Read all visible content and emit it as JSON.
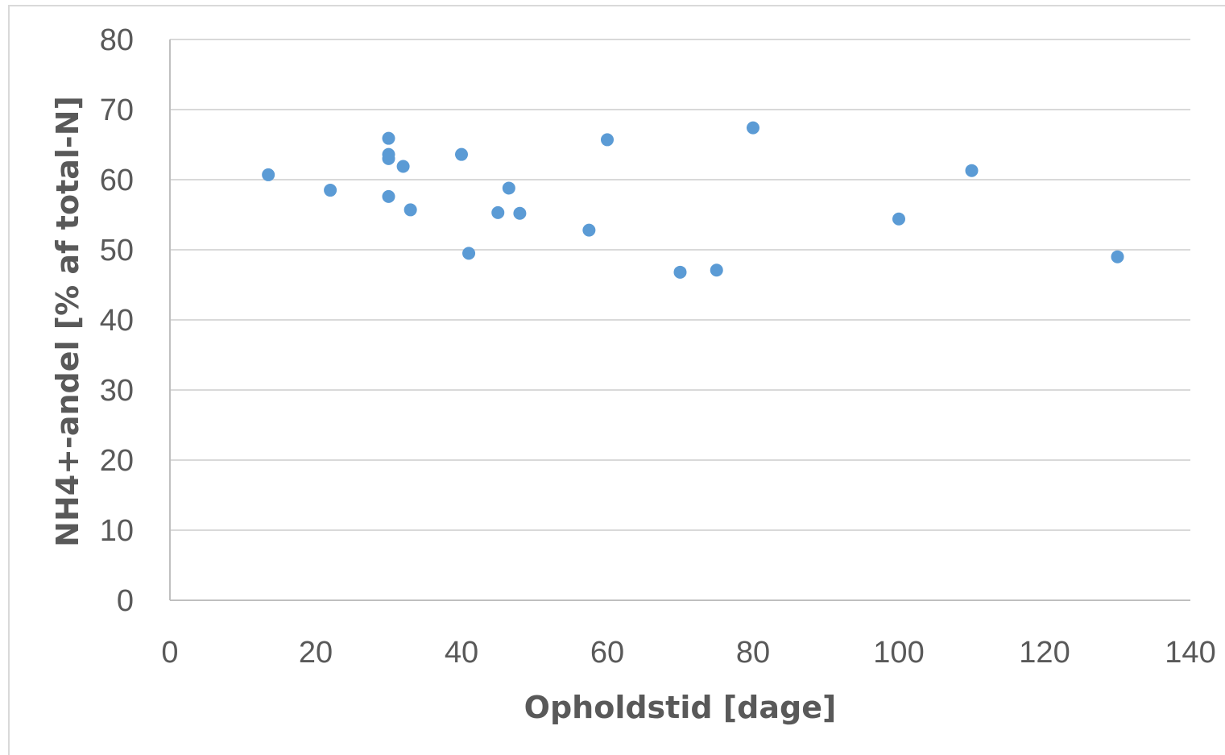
{
  "chart_data": {
    "type": "scatter",
    "title": "",
    "xlabel": "Opholdstid [dage]",
    "ylabel": "NH4+-andel [% af total-N]",
    "xlim": [
      0,
      140
    ],
    "ylim": [
      0,
      80
    ],
    "xticks": [
      0,
      20,
      40,
      60,
      80,
      100,
      120,
      140
    ],
    "yticks": [
      0,
      10,
      20,
      30,
      40,
      50,
      60,
      70,
      80
    ],
    "grid": "horizontal",
    "legend": "none",
    "color": "#5b9bd5",
    "gridColor": "#d9d9d9",
    "axisColor": "#bfbfbf",
    "points": [
      {
        "x": 13.5,
        "y": 60.7
      },
      {
        "x": 22,
        "y": 58.5
      },
      {
        "x": 30,
        "y": 65.9
      },
      {
        "x": 30,
        "y": 63.6
      },
      {
        "x": 30,
        "y": 63.0
      },
      {
        "x": 30,
        "y": 57.6
      },
      {
        "x": 32,
        "y": 61.9
      },
      {
        "x": 33,
        "y": 55.7
      },
      {
        "x": 40,
        "y": 63.6
      },
      {
        "x": 41,
        "y": 49.5
      },
      {
        "x": 45,
        "y": 55.3
      },
      {
        "x": 46.5,
        "y": 58.8
      },
      {
        "x": 48,
        "y": 55.2
      },
      {
        "x": 57.5,
        "y": 52.8
      },
      {
        "x": 60,
        "y": 65.7
      },
      {
        "x": 70,
        "y": 46.8
      },
      {
        "x": 75,
        "y": 47.1
      },
      {
        "x": 80,
        "y": 67.4
      },
      {
        "x": 100,
        "y": 54.4
      },
      {
        "x": 110,
        "y": 61.3
      },
      {
        "x": 130,
        "y": 49.0
      }
    ]
  }
}
